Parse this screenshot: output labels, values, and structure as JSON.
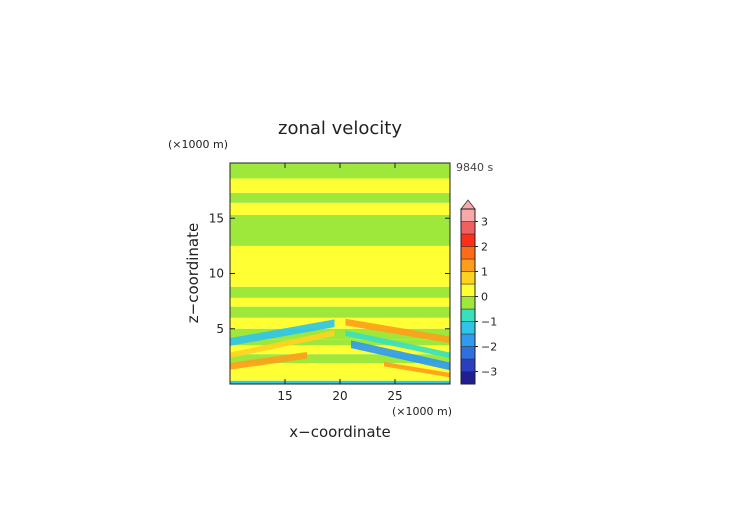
{
  "chart_data": {
    "type": "heatmap",
    "title": "zonal velocity",
    "time_label": "9840 s",
    "xlabel": "x−coordinate",
    "ylabel": "z−coordinate",
    "x_unit": "(×1000 m)",
    "y_unit": "(×1000 m)",
    "xlim": [
      10,
      30
    ],
    "ylim": [
      0,
      20
    ],
    "x_ticks": [
      15,
      20,
      25
    ],
    "y_ticks": [
      5,
      10,
      15
    ],
    "colorbar": {
      "levels": [
        -3.5,
        -3,
        -2.5,
        -2,
        -1.5,
        -1,
        -0.5,
        0,
        0.5,
        1,
        1.5,
        2,
        2.5,
        3,
        3.5
      ],
      "tick_values": [
        -3,
        -2,
        -1,
        0,
        1,
        2,
        3
      ],
      "colors": [
        "#1f1f8f",
        "#2a3fbf",
        "#2f6fe0",
        "#2f9bf0",
        "#30c4e8",
        "#39e0c0",
        "#9ee83c",
        "#ffff33",
        "#ffd21f",
        "#ff9e1a",
        "#ff6a17",
        "#ff2f17",
        "#f06060",
        "#f8a8a8"
      ],
      "extend": "max"
    },
    "background_bands_z": [
      {
        "z": [
          0.0,
          0.3
        ],
        "value": -1.2
      },
      {
        "z": [
          0.3,
          0.9
        ],
        "value": 0.3
      },
      {
        "z": [
          0.9,
          1.9
        ],
        "value": 0.1
      },
      {
        "z": [
          1.9,
          2.7
        ],
        "value": -0.3
      },
      {
        "z": [
          2.7,
          3.5
        ],
        "value": 0.2
      },
      {
        "z": [
          3.5,
          4.0
        ],
        "value": -0.4
      },
      {
        "z": [
          4.0,
          5.0
        ],
        "value": -0.2
      },
      {
        "z": [
          5.0,
          6.0
        ],
        "value": 0.2
      },
      {
        "z": [
          6.0,
          7.0
        ],
        "value": -0.3
      },
      {
        "z": [
          7.0,
          7.8
        ],
        "value": 0.3
      },
      {
        "z": [
          7.8,
          8.8
        ],
        "value": -0.3
      },
      {
        "z": [
          8.8,
          12.5
        ],
        "value": 0.3
      },
      {
        "z": [
          12.5,
          15.3
        ],
        "value": -0.3
      },
      {
        "z": [
          15.3,
          16.4
        ],
        "value": 0.3
      },
      {
        "z": [
          16.4,
          17.3
        ],
        "value": -0.3
      },
      {
        "z": [
          17.3,
          18.6
        ],
        "value": 0.3
      },
      {
        "z": [
          18.6,
          20.0
        ],
        "value": -0.3
      }
    ],
    "features": [
      {
        "shape": "wedge-left",
        "x": [
          10,
          19.5
        ],
        "z_center": [
          3.8,
          5.5
        ],
        "thickness": 0.7,
        "value": -1.3
      },
      {
        "shape": "wedge-left",
        "x": [
          10,
          19.5
        ],
        "z_center": [
          2.6,
          4.6
        ],
        "thickness": 0.5,
        "value": 0.7
      },
      {
        "shape": "wedge-left",
        "x": [
          10,
          17
        ],
        "z_center": [
          1.6,
          2.6
        ],
        "thickness": 0.6,
        "value": 1.2
      },
      {
        "shape": "wedge-right",
        "x": [
          20.5,
          30
        ],
        "z_center": [
          5.6,
          4.0
        ],
        "thickness": 0.6,
        "value": 1.3
      },
      {
        "shape": "wedge-right",
        "x": [
          20.5,
          30
        ],
        "z_center": [
          4.6,
          2.6
        ],
        "thickness": 0.5,
        "value": -0.8
      },
      {
        "shape": "wedge-right",
        "x": [
          21,
          30
        ],
        "z_center": [
          3.6,
          1.6
        ],
        "thickness": 0.7,
        "value": -1.6
      },
      {
        "shape": "wedge-right",
        "x": [
          24,
          30
        ],
        "z_center": [
          1.8,
          0.8
        ],
        "thickness": 0.4,
        "value": 1.1
      }
    ]
  }
}
